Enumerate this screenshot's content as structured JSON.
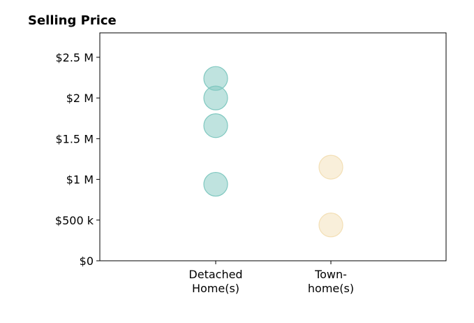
{
  "chart_data": {
    "type": "scatter",
    "title": "Selling Price",
    "categories": [
      "Detached\nHome(s)",
      "Town-\nhome(s)"
    ],
    "ylim": [
      0,
      2800000
    ],
    "y_ticks": [
      {
        "value": 0,
        "label": "$0"
      },
      {
        "value": 500000,
        "label": "$500 k"
      },
      {
        "value": 1000000,
        "label": "$1 M"
      },
      {
        "value": 1500000,
        "label": "$1.5 M"
      },
      {
        "value": 2000000,
        "label": "$2 M"
      },
      {
        "value": 2500000,
        "label": "$2.5 M"
      }
    ],
    "series": [
      {
        "category_index": 0,
        "color": "#7fc8c0",
        "values": [
          2240000,
          2000000,
          1660000,
          940000
        ]
      },
      {
        "category_index": 1,
        "color": "#f3dfb5",
        "values": [
          1150000,
          440000
        ]
      }
    ],
    "grid": false,
    "legend": "none"
  }
}
